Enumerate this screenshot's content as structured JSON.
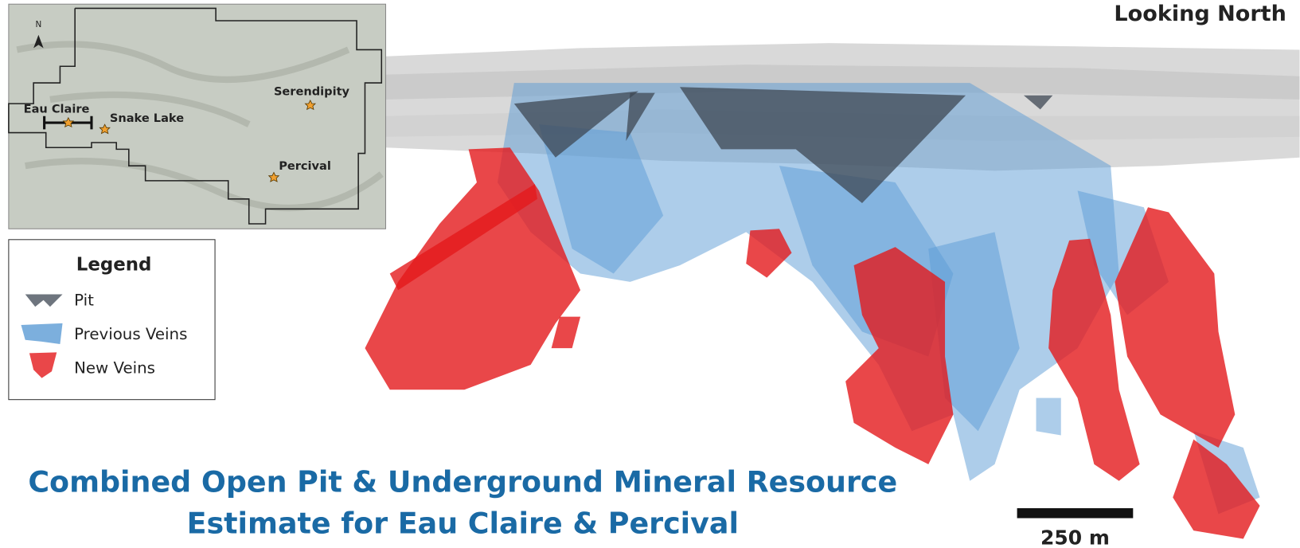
{
  "header": {
    "view_label": "Looking North"
  },
  "inset_map": {
    "north": "N",
    "sites": [
      {
        "label": "Eau Claire"
      },
      {
        "label": "Snake Lake"
      },
      {
        "label": "Serendipity"
      },
      {
        "label": "Percival"
      }
    ]
  },
  "legend": {
    "title": "Legend",
    "items": [
      {
        "label": "Pit"
      },
      {
        "label": "Previous Veins"
      },
      {
        "label": "New Veins"
      }
    ]
  },
  "title": {
    "lines": [
      "Combined Open Pit & Underground Mineral Resource",
      "Estimate for Eau Claire & Percival"
    ]
  },
  "scale_bar": {
    "label": "250 m"
  }
}
